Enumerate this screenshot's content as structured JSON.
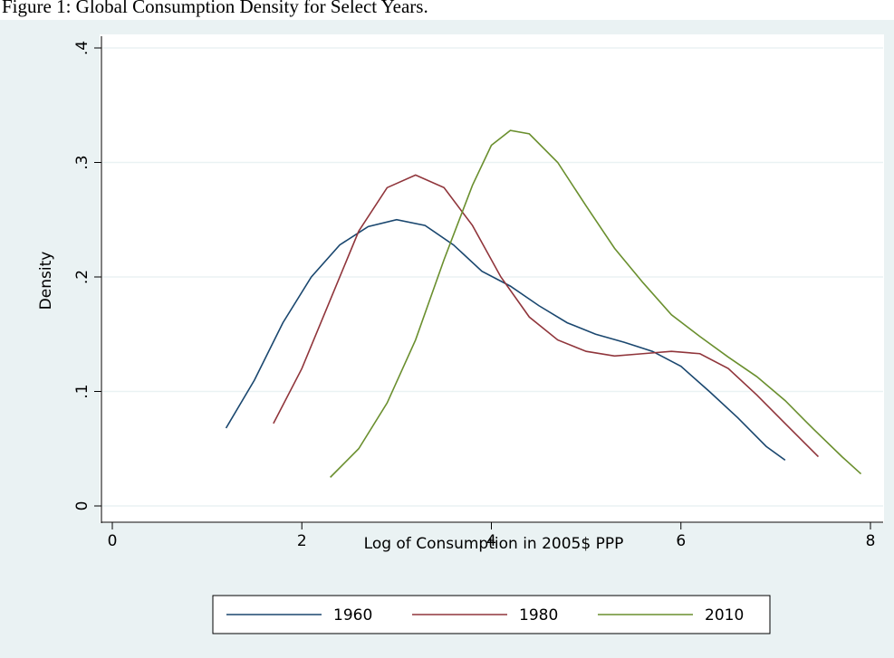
{
  "chart_data": {
    "type": "line",
    "title": "Figure 1: Global Consumption Density for Select Years.",
    "xlabel": "Log of Consumption in 2005$ PPP",
    "ylabel": "Density",
    "xlim": [
      0,
      8
    ],
    "ylim": [
      0,
      0.4
    ],
    "xticks": [
      0,
      2,
      4,
      6,
      8
    ],
    "yticks": [
      0,
      {
        "value": 0.1,
        "label": ".1"
      },
      {
        "value": 0.2,
        "label": ".2"
      },
      {
        "value": 0.3,
        "label": ".3"
      },
      {
        "value": 0.4,
        "label": ".4"
      }
    ],
    "grid": true,
    "legend": "bottom",
    "series": [
      {
        "name": "1960",
        "color": "#1a476f",
        "x": [
          1.2,
          1.5,
          1.8,
          2.1,
          2.4,
          2.7,
          3.0,
          3.3,
          3.6,
          3.9,
          4.2,
          4.5,
          4.8,
          5.1,
          5.4,
          5.7,
          6.0,
          6.3,
          6.6,
          6.9,
          7.1
        ],
        "values": [
          0.068,
          0.11,
          0.16,
          0.2,
          0.228,
          0.244,
          0.25,
          0.245,
          0.228,
          0.205,
          0.192,
          0.175,
          0.16,
          0.15,
          0.143,
          0.135,
          0.122,
          0.1,
          0.077,
          0.052,
          0.04
        ]
      },
      {
        "name": "1980",
        "color": "#90353b",
        "x": [
          1.7,
          2.0,
          2.3,
          2.6,
          2.9,
          3.2,
          3.5,
          3.8,
          4.1,
          4.4,
          4.7,
          5.0,
          5.3,
          5.6,
          5.9,
          6.2,
          6.5,
          6.8,
          7.1,
          7.45
        ],
        "values": [
          0.072,
          0.12,
          0.18,
          0.24,
          0.278,
          0.289,
          0.278,
          0.245,
          0.2,
          0.165,
          0.145,
          0.135,
          0.131,
          0.133,
          0.135,
          0.133,
          0.12,
          0.097,
          0.072,
          0.043
        ]
      },
      {
        "name": "2010",
        "color": "#6a8f2e",
        "x": [
          2.3,
          2.6,
          2.9,
          3.2,
          3.5,
          3.8,
          4.0,
          4.2,
          4.4,
          4.7,
          5.0,
          5.3,
          5.6,
          5.9,
          6.2,
          6.5,
          6.8,
          7.1,
          7.4,
          7.7,
          7.9
        ],
        "values": [
          0.025,
          0.05,
          0.09,
          0.145,
          0.215,
          0.28,
          0.315,
          0.328,
          0.325,
          0.3,
          0.262,
          0.225,
          0.195,
          0.167,
          0.148,
          0.13,
          0.113,
          0.092,
          0.067,
          0.043,
          0.028
        ]
      }
    ]
  }
}
